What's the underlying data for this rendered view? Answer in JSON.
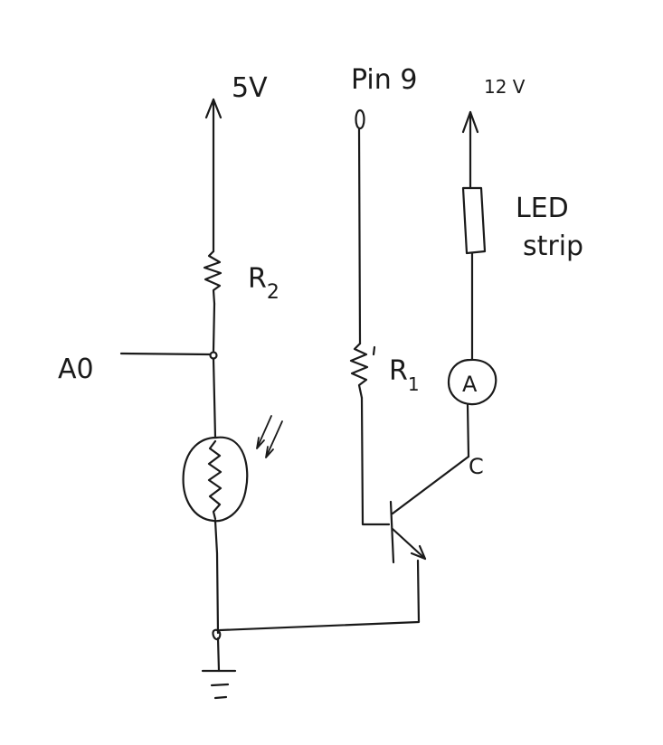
{
  "labels": {
    "supply_5v": "5V",
    "pin9": "Pin 9",
    "supply_12v": "12 V",
    "led_line1": "LED",
    "led_line2": "strip",
    "r2_letter": "R",
    "r2_sub": "2",
    "r1_letter": "R",
    "r1_sub": "1",
    "a0": "A0",
    "ammeter": "A",
    "collector": "C"
  }
}
